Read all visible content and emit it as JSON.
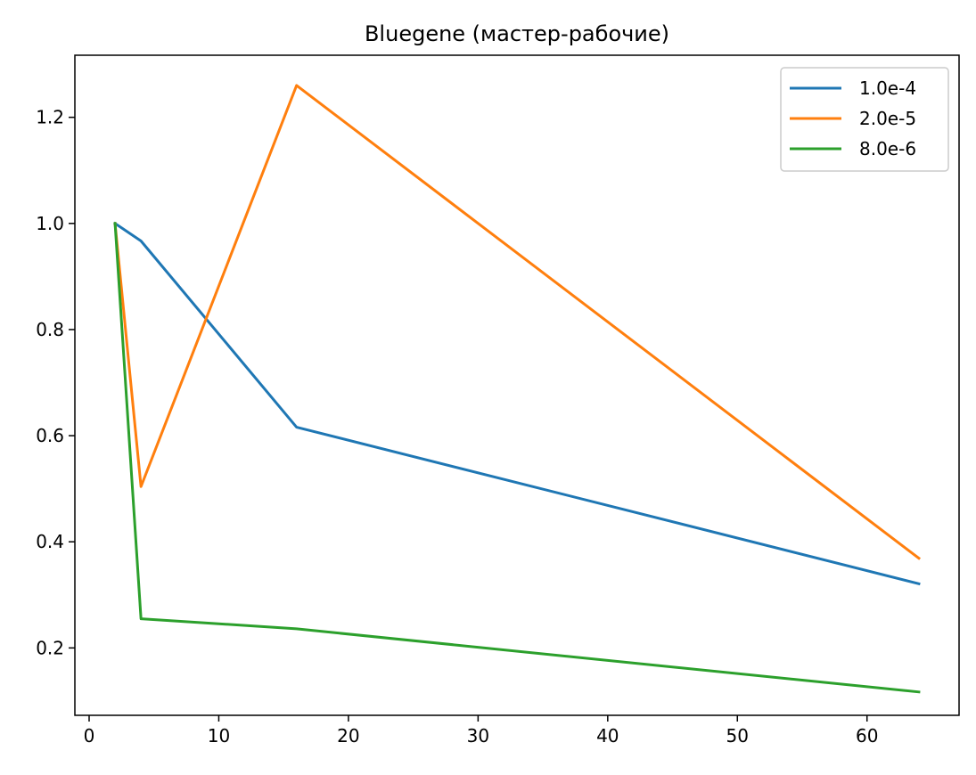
{
  "chart_data": {
    "type": "line",
    "title": "Bluegene (мастер-рабочие)",
    "xlabel": "",
    "ylabel": "",
    "x": [
      2,
      4,
      16,
      64
    ],
    "series": [
      {
        "name": "1.0e-4",
        "color": "#1f77b4",
        "values": [
          1.0,
          0.967,
          0.616,
          0.321
        ]
      },
      {
        "name": "2.0e-5",
        "color": "#ff7f0e",
        "values": [
          1.0,
          0.504,
          1.26,
          0.369
        ]
      },
      {
        "name": "8.0e-6",
        "color": "#2ca02c",
        "values": [
          1.0,
          0.255,
          0.236,
          0.117
        ]
      }
    ],
    "xlim": [
      -1.1,
      67.1
    ],
    "ylim": [
      0.073,
      1.317
    ],
    "xticks": [
      0,
      10,
      20,
      30,
      40,
      50,
      60
    ],
    "yticks": [
      0.2,
      0.4,
      0.6,
      0.8,
      1.0,
      1.2
    ],
    "ytick_labels": [
      "0.2",
      "0.4",
      "0.6",
      "0.8",
      "1.0",
      "1.2"
    ],
    "grid": false,
    "legend_position": "top-right"
  }
}
